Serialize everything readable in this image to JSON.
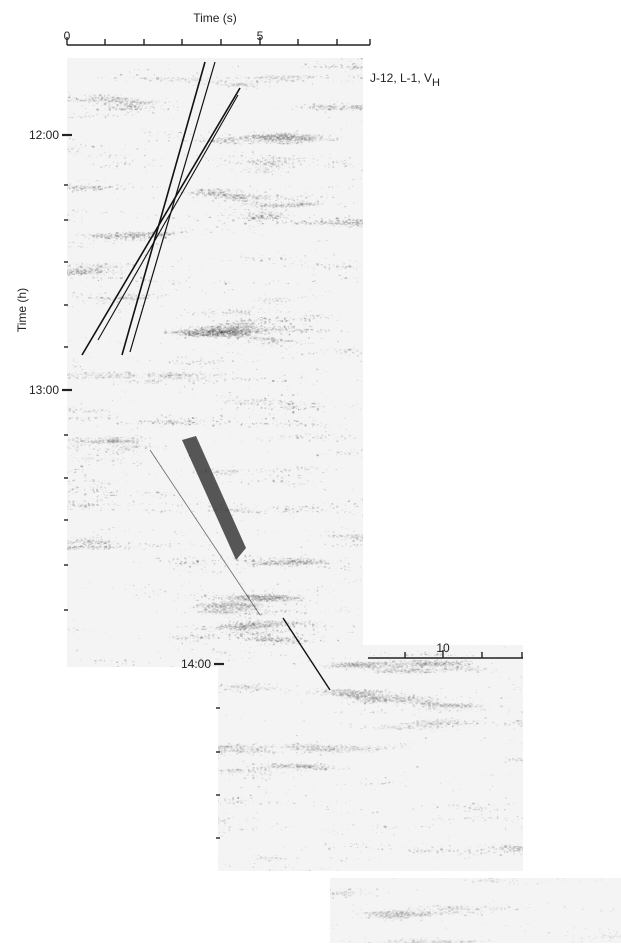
{
  "figure": {
    "top_axis": {
      "title": "Time (s)",
      "labels": [
        "0",
        "5"
      ]
    },
    "lower_axis": {
      "labels": [
        "10"
      ]
    },
    "left_axis": {
      "title": "Time (h)",
      "labels": [
        "12:00",
        "13:00",
        "14:00"
      ]
    },
    "record_label": {
      "text": "J-12, L-1, V",
      "subscript": "H"
    }
  }
}
